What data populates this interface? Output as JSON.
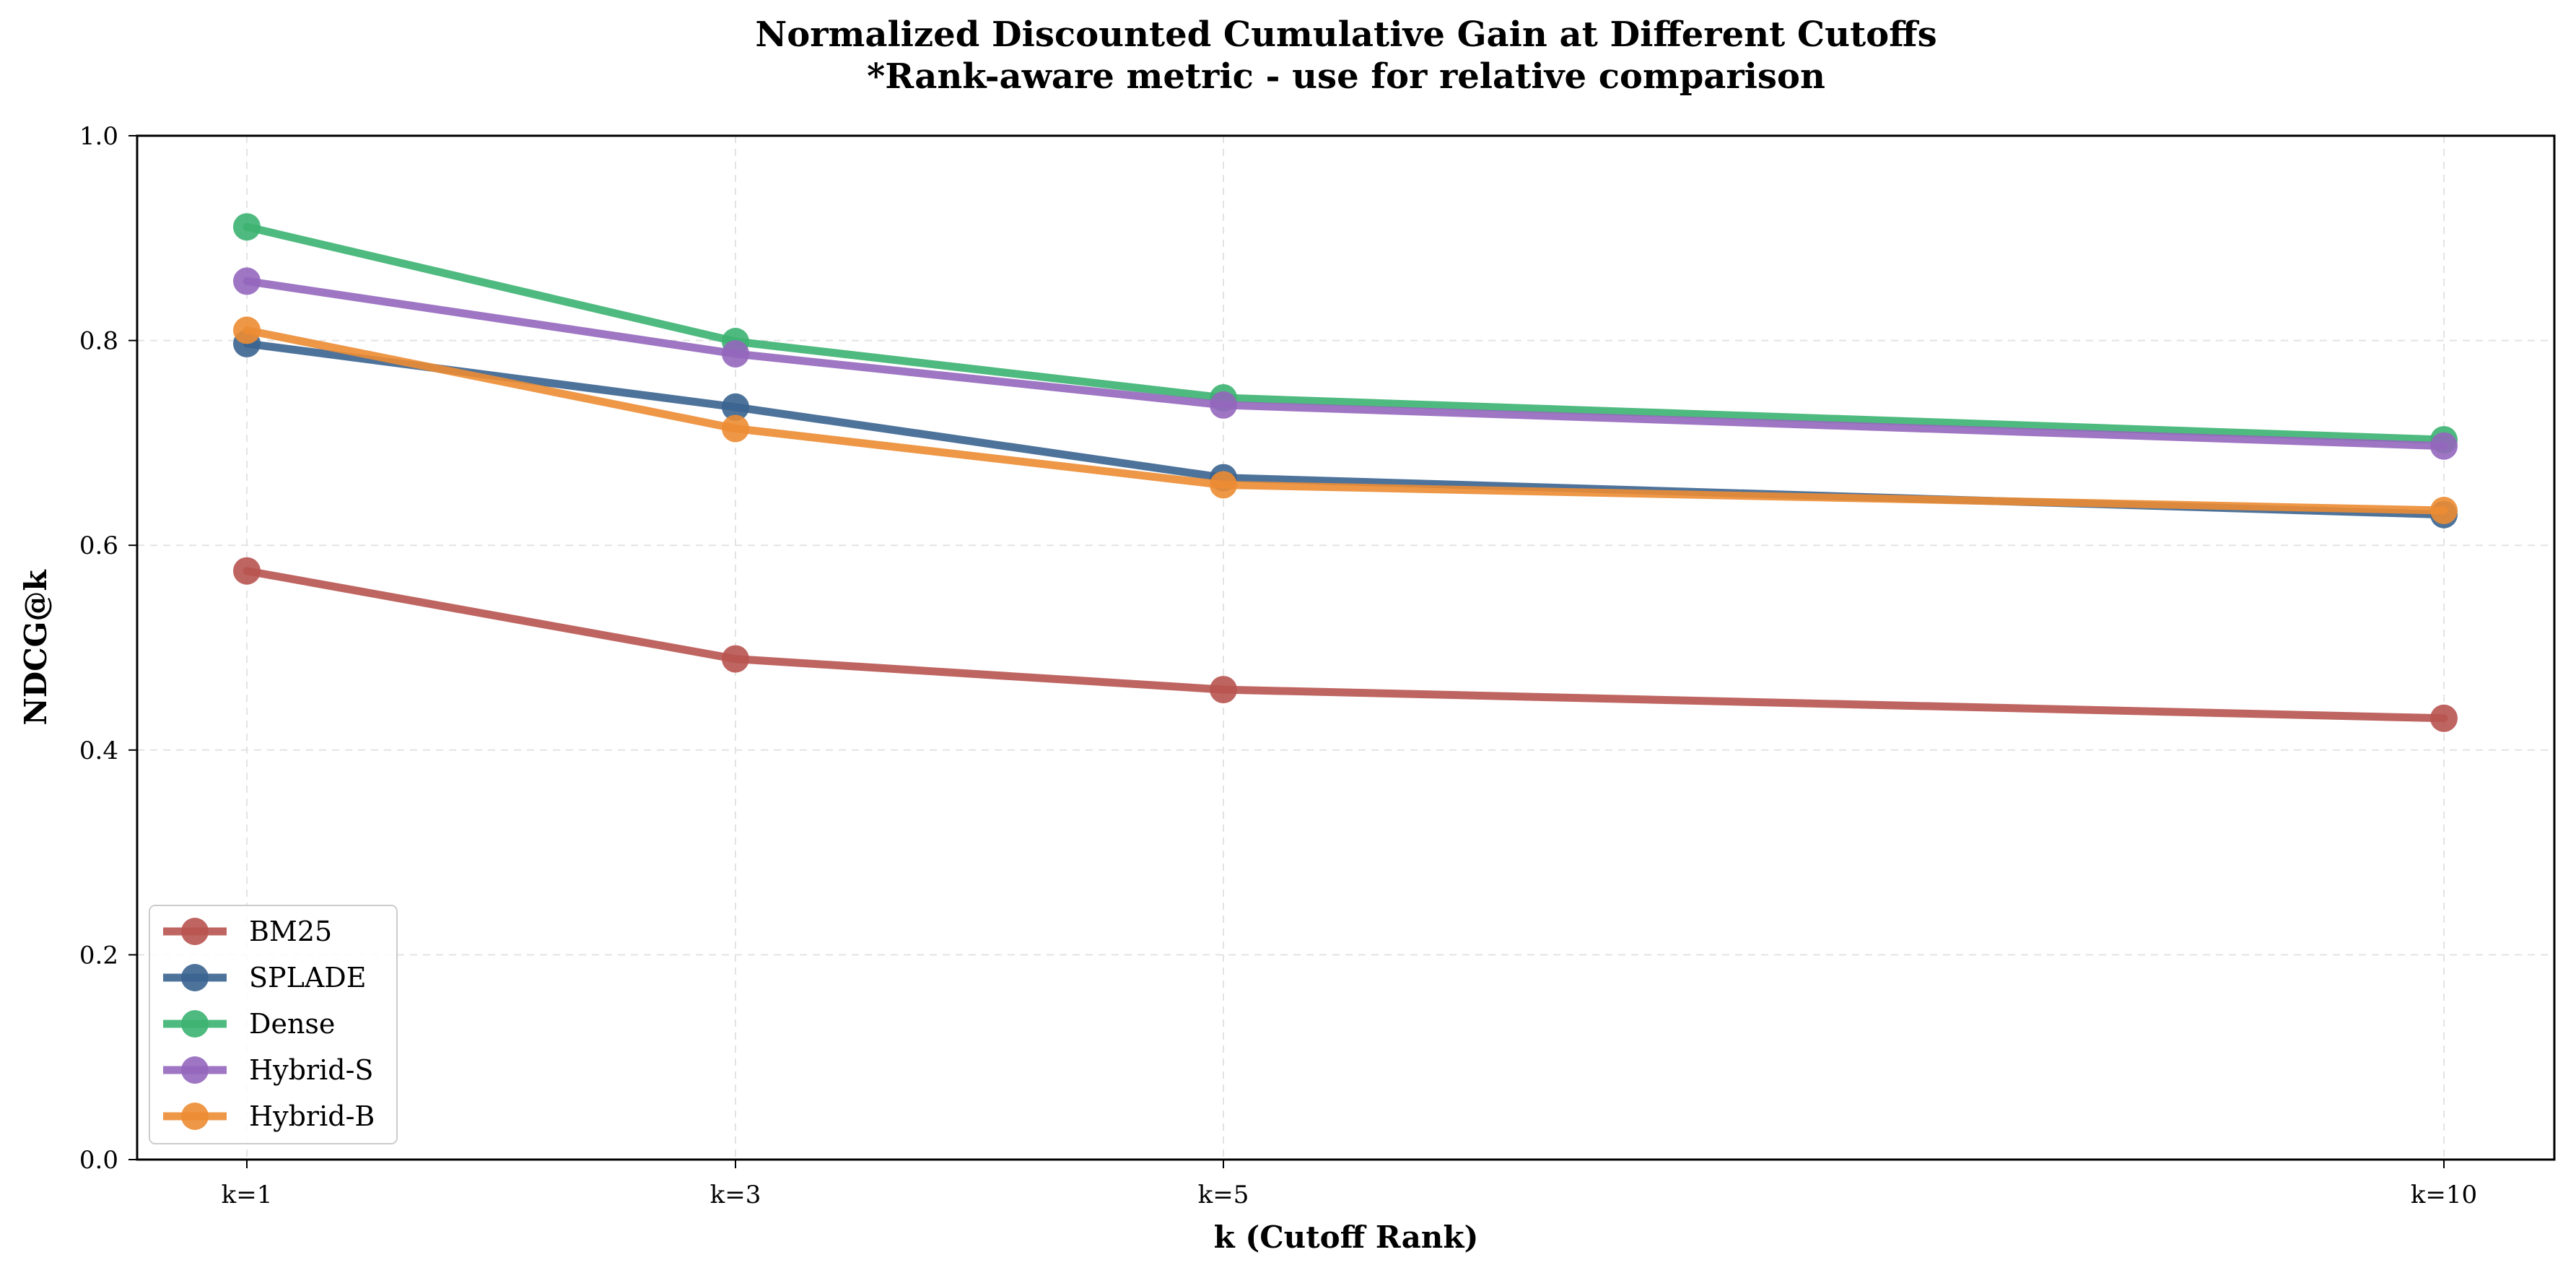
{
  "chart_data": {
    "type": "line",
    "title": "Normalized Discounted Cumulative Gain at Different Cutoffs",
    "subtitle": "*Rank-aware metric - use for relative comparison",
    "xlabel": "k (Cutoff Rank)",
    "ylabel": "NDCG@k",
    "x": [
      1,
      3,
      5,
      10
    ],
    "categories": [
      "k=1",
      "k=3",
      "k=5",
      "k=10"
    ],
    "ylim": [
      0,
      1.0
    ],
    "yticks": [
      "0.0",
      "0.2",
      "0.4",
      "0.6",
      "0.8",
      "1.0"
    ],
    "grid": true,
    "legend_position": "lower-left",
    "series": [
      {
        "name": "BM25",
        "color": "#b85450",
        "values": [
          0.575,
          0.489,
          0.459,
          0.431
        ]
      },
      {
        "name": "SPLADE",
        "color": "#3b6490",
        "values": [
          0.797,
          0.735,
          0.666,
          0.63
        ]
      },
      {
        "name": "Dense",
        "color": "#3cb371",
        "values": [
          0.911,
          0.799,
          0.744,
          0.703
        ]
      },
      {
        "name": "Hybrid-S",
        "color": "#9467bd",
        "values": [
          0.858,
          0.787,
          0.737,
          0.697
        ]
      },
      {
        "name": "Hybrid-B",
        "color": "#ec8c33",
        "values": [
          0.81,
          0.714,
          0.659,
          0.634
        ]
      }
    ]
  }
}
